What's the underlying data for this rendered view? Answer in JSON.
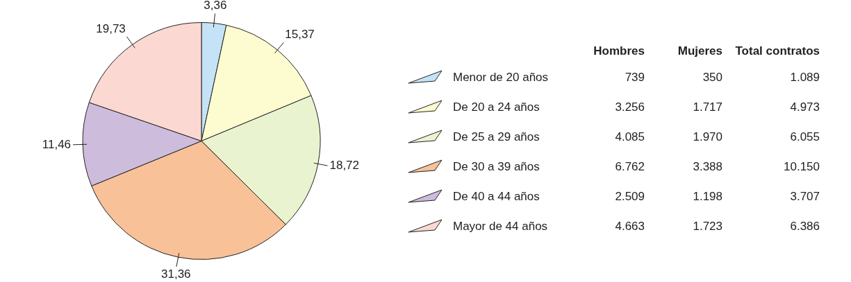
{
  "chart_data": [
    {
      "type": "pie",
      "categories": [
        "Menor de 20 años",
        "De 20 a 24 años",
        "De 25 a 29 años",
        "De 30 a 39 años",
        "De 40 a 44 años",
        "Mayor de 44 años"
      ],
      "values": [
        3.36,
        15.37,
        18.72,
        31.36,
        11.46,
        19.73
      ],
      "value_labels": [
        "3,36",
        "15,37",
        "18,72",
        "31,36",
        "11,46",
        "19,73"
      ],
      "colors": [
        "#c5e3f6",
        "#fdfbd0",
        "#eaf3d0",
        "#f8c197",
        "#cdbcdc",
        "#fbd9d2"
      ],
      "legend": "right"
    },
    {
      "type": "other",
      "categories": [
        "Hombres",
        "Mujeres",
        "Total contratos"
      ],
      "cell_labels": [
        [
          "739",
          "350",
          "1.089"
        ],
        [
          "3.256",
          "1.717",
          "4.973"
        ],
        [
          "4.085",
          "1.970",
          "6.055"
        ],
        [
          "6.762",
          "3.388",
          "10.150"
        ],
        [
          "2.509",
          "1.198",
          "3.707"
        ],
        [
          "4.663",
          "1.723",
          "6.386"
        ]
      ]
    }
  ]
}
